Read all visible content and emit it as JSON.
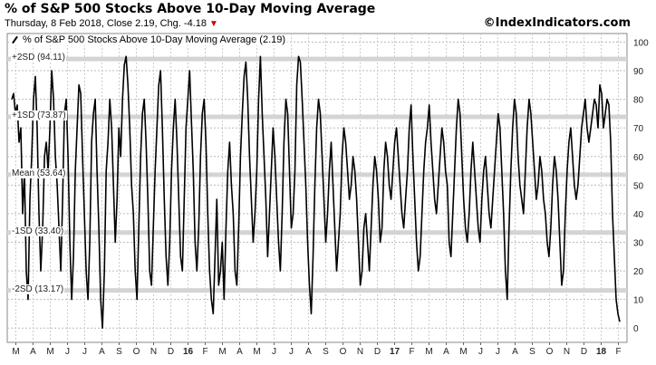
{
  "header": {
    "title": "% of S&P 500 Stocks Above 10-Day Moving Average",
    "subtitle": "Thursday, 8 Feb 2018, Close 2.19, Chg. -4.18",
    "credit": "©IndexIndicators.com",
    "down_color": "#cc0000"
  },
  "chart_data": {
    "type": "line",
    "legend": "% of S&P 500 Stocks Above 10-Day Moving Average (2.19)",
    "ylim": [
      -5,
      103
    ],
    "yticks": [
      0,
      10,
      20,
      30,
      40,
      50,
      60,
      70,
      80,
      90,
      100
    ],
    "grid": true,
    "bands": [
      {
        "label": "+2SD (94.11)",
        "value": 94.11
      },
      {
        "label": "+1SD (73.87)",
        "value": 73.87
      },
      {
        "label": "Mean (53.64)",
        "value": 53.64
      },
      {
        "label": "-1SD (33.40)",
        "value": 33.4
      },
      {
        "label": "-2SD (13.17)",
        "value": 13.17
      }
    ],
    "xticks": [
      "M",
      "A",
      "M",
      "J",
      "J",
      "A",
      "S",
      "O",
      "N",
      "D",
      "16",
      "F",
      "M",
      "A",
      "M",
      "J",
      "J",
      "A",
      "S",
      "O",
      "N",
      "D",
      "17",
      "F",
      "M",
      "A",
      "M",
      "J",
      "J",
      "A",
      "S",
      "O",
      "N",
      "D",
      "18",
      "F"
    ],
    "series": [
      {
        "values": [
          80,
          82,
          75,
          78,
          65,
          70,
          40,
          55,
          20,
          10,
          45,
          60,
          80,
          88,
          70,
          40,
          20,
          35,
          60,
          65,
          55,
          70,
          90,
          80,
          60,
          50,
          35,
          20,
          45,
          75,
          80,
          60,
          30,
          10,
          25,
          55,
          70,
          85,
          82,
          60,
          40,
          20,
          10,
          30,
          65,
          75,
          80,
          55,
          35,
          10,
          0,
          20,
          55,
          65,
          80,
          70,
          50,
          30,
          45,
          70,
          60,
          80,
          92,
          95,
          85,
          70,
          50,
          40,
          20,
          10,
          35,
          60,
          75,
          80,
          65,
          45,
          20,
          15,
          35,
          55,
          70,
          85,
          90,
          70,
          45,
          25,
          15,
          30,
          55,
          70,
          80,
          65,
          45,
          25,
          20,
          45,
          70,
          80,
          90,
          72,
          55,
          30,
          20,
          35,
          60,
          75,
          80,
          65,
          40,
          20,
          10,
          5,
          25,
          45,
          15,
          20,
          30,
          10,
          35,
          55,
          65,
          50,
          40,
          20,
          15,
          35,
          60,
          75,
          88,
          93,
          80,
          60,
          45,
          30,
          40,
          55,
          80,
          95,
          75,
          60,
          45,
          25,
          40,
          55,
          70,
          60,
          45,
          30,
          20,
          40,
          65,
          80,
          75,
          55,
          35,
          40,
          55,
          85,
          95,
          93,
          80,
          65,
          50,
          30,
          15,
          5,
          25,
          50,
          70,
          80,
          75,
          60,
          45,
          30,
          40,
          55,
          65,
          50,
          35,
          20,
          30,
          40,
          60,
          70,
          65,
          55,
          45,
          50,
          60,
          55,
          45,
          30,
          15,
          20,
          35,
          40,
          30,
          20,
          35,
          50,
          60,
          55,
          45,
          30,
          35,
          55,
          65,
          60,
          50,
          45,
          55,
          65,
          70,
          60,
          50,
          40,
          35,
          45,
          55,
          70,
          78,
          60,
          45,
          30,
          20,
          25,
          40,
          55,
          65,
          70,
          78,
          65,
          55,
          45,
          40,
          50,
          60,
          70,
          65,
          55,
          50,
          30,
          25,
          40,
          55,
          70,
          80,
          75,
          60,
          45,
          35,
          30,
          40,
          55,
          65,
          55,
          45,
          35,
          30,
          45,
          55,
          60,
          50,
          40,
          35,
          45,
          55,
          65,
          75,
          70,
          55,
          40,
          20,
          10,
          35,
          55,
          70,
          80,
          75,
          60,
          50,
          45,
          40,
          55,
          70,
          80,
          75,
          65,
          55,
          45,
          50,
          60,
          55,
          45,
          40,
          30,
          25,
          35,
          50,
          60,
          55,
          45,
          30,
          15,
          20,
          40,
          55,
          65,
          70,
          60,
          50,
          45,
          50,
          60,
          70,
          75,
          80,
          70,
          65,
          70,
          75,
          80,
          78,
          70,
          85,
          82,
          70,
          75,
          80,
          78,
          65,
          40,
          25,
          10,
          5,
          2.19
        ]
      }
    ]
  }
}
